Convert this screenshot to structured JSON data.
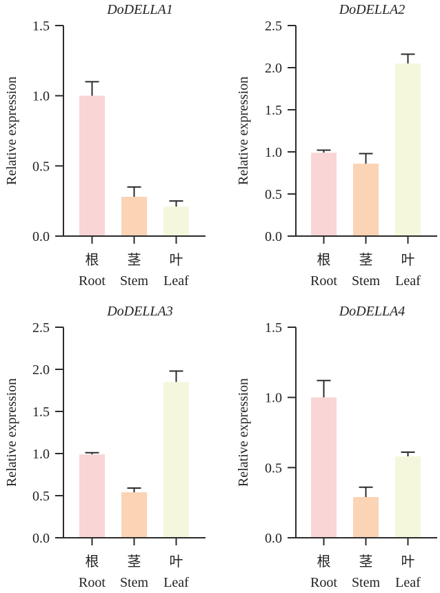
{
  "chart_data": [
    {
      "type": "bar",
      "title": "DoDELLA1",
      "xlabel": "",
      "ylabel": "Relative expression",
      "ylim": [
        0,
        1.5
      ],
      "yticks": [
        "0.0",
        "0.5",
        "1.0",
        "1.5"
      ],
      "ytick_values": [
        0,
        0.5,
        1.0,
        1.5
      ],
      "categories": [
        {
          "cn": "根",
          "en": "Root"
        },
        {
          "cn": "茎",
          "en": "Stem"
        },
        {
          "cn": "叶",
          "en": "Leaf"
        }
      ],
      "values": [
        1.0,
        0.28,
        0.21
      ],
      "error_upper": [
        1.1,
        0.35,
        0.25
      ],
      "colors": [
        "#f9d5d5",
        "#fbd3b5",
        "#f5f7dc"
      ],
      "grid": false
    },
    {
      "type": "bar",
      "title": "DoDELLA2",
      "xlabel": "",
      "ylabel": "Relative expression",
      "ylim": [
        0,
        2.5
      ],
      "yticks": [
        "0.0",
        "0.5",
        "1.0",
        "1.5",
        "2.0",
        "2.5"
      ],
      "ytick_values": [
        0,
        0.5,
        1.0,
        1.5,
        2.0,
        2.5
      ],
      "categories": [
        {
          "cn": "根",
          "en": "Root"
        },
        {
          "cn": "茎",
          "en": "Stem"
        },
        {
          "cn": "叶",
          "en": "Leaf"
        }
      ],
      "values": [
        0.99,
        0.86,
        2.05
      ],
      "error_upper": [
        1.02,
        0.98,
        2.16
      ],
      "colors": [
        "#f9d5d5",
        "#fbd3b5",
        "#f5f7dc"
      ],
      "grid": false
    },
    {
      "type": "bar",
      "title": "DoDELLA3",
      "xlabel": "",
      "ylabel": "Relative expression",
      "ylim": [
        0,
        2.5
      ],
      "yticks": [
        "0.0",
        "0.5",
        "1.0",
        "1.5",
        "2.0",
        "2.5"
      ],
      "ytick_values": [
        0,
        0.5,
        1.0,
        1.5,
        2.0,
        2.5
      ],
      "categories": [
        {
          "cn": "根",
          "en": "Root"
        },
        {
          "cn": "茎",
          "en": "Stem"
        },
        {
          "cn": "叶",
          "en": "Leaf"
        }
      ],
      "values": [
        0.99,
        0.54,
        1.85
      ],
      "error_upper": [
        1.01,
        0.59,
        1.98
      ],
      "colors": [
        "#f9d5d5",
        "#fbd3b5",
        "#f5f7dc"
      ],
      "grid": false
    },
    {
      "type": "bar",
      "title": "DoDELLA4",
      "xlabel": "",
      "ylabel": "Relative expression",
      "ylim": [
        0,
        1.5
      ],
      "yticks": [
        "0.0",
        "0.5",
        "1.0",
        "1.5"
      ],
      "ytick_values": [
        0,
        0.5,
        1.0,
        1.5
      ],
      "categories": [
        {
          "cn": "根",
          "en": "Root"
        },
        {
          "cn": "茎",
          "en": "Stem"
        },
        {
          "cn": "叶",
          "en": "Leaf"
        }
      ],
      "values": [
        1.0,
        0.29,
        0.58
      ],
      "error_upper": [
        1.12,
        0.36,
        0.61
      ],
      "colors": [
        "#f9d5d5",
        "#fbd3b5",
        "#f5f7dc"
      ],
      "grid": false
    }
  ]
}
